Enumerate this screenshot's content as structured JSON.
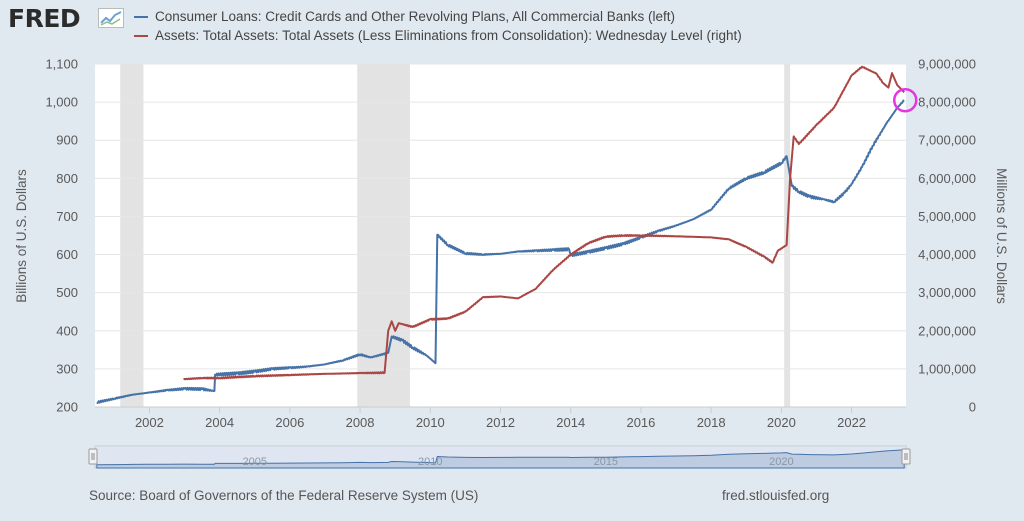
{
  "logo": {
    "text": "FRED"
  },
  "legend": [
    {
      "label": "Consumer Loans: Credit Cards and Other Revolving Plans, All Commercial Banks (left)",
      "color": "#4572a7"
    },
    {
      "label": "Assets: Total Assets: Total Assets (Less Eliminations from Consolidation): Wednesday Level (right)",
      "color": "#aa4643"
    }
  ],
  "footer": {
    "source": "Source: Board of Governors of the Federal Reserve System (US)",
    "site": "fred.stlouisfed.org"
  },
  "colors": {
    "plot_background": "#ffffff",
    "page_background": "#e1e9f0",
    "gridline": "#e6e6e6",
    "recession": "#e3e3e3",
    "highlight_circle": "#e633e6",
    "navigator_fill": "#c5d2e6",
    "navigator_line": "#4572a7"
  },
  "chart_data": {
    "type": "line",
    "x_range": [
      2000.45,
      2023.55
    ],
    "x_ticks": [
      2002,
      2004,
      2006,
      2008,
      2010,
      2012,
      2014,
      2016,
      2018,
      2020,
      2022
    ],
    "x_tick_labels": [
      "2002",
      "2004",
      "2006",
      "2008",
      "2010",
      "2012",
      "2014",
      "2016",
      "2018",
      "2020",
      "2022"
    ],
    "y_left": {
      "label": "Billions of U.S. Dollars",
      "range": [
        200,
        1100
      ],
      "ticks": [
        200,
        300,
        400,
        500,
        600,
        700,
        800,
        900,
        1000,
        1100
      ],
      "tick_labels": [
        "200",
        "300",
        "400",
        "500",
        "600",
        "700",
        "800",
        "900",
        "1,000",
        "1,100"
      ]
    },
    "y_right": {
      "label": "Millions of U.S. Dollars",
      "range": [
        0,
        9000000
      ],
      "ticks": [
        0,
        1000000,
        2000000,
        3000000,
        4000000,
        5000000,
        6000000,
        7000000,
        8000000,
        9000000
      ],
      "tick_labels": [
        "0",
        "1,000,000",
        "2,000,000",
        "3,000,000",
        "4,000,000",
        "5,000,000",
        "6,000,000",
        "7,000,000",
        "8,000,000",
        "9,000,000"
      ]
    },
    "recessions": [
      [
        2001.17,
        2001.83
      ],
      [
        2007.92,
        2009.42
      ],
      [
        2020.08,
        2020.25
      ]
    ],
    "series": [
      {
        "name": "Consumer Loans: Credit Cards and Other Revolving Plans, All Commercial Banks",
        "axis": "left",
        "color": "#4572a7",
        "points": [
          [
            2000.5,
            212
          ],
          [
            2001.0,
            222
          ],
          [
            2001.5,
            232
          ],
          [
            2002.0,
            238
          ],
          [
            2002.5,
            244
          ],
          [
            2003.0,
            248
          ],
          [
            2003.5,
            247
          ],
          [
            2003.85,
            242
          ],
          [
            2003.87,
            285
          ],
          [
            2004.5,
            288
          ],
          [
            2005.0,
            293
          ],
          [
            2005.5,
            300
          ],
          [
            2006.0,
            303
          ],
          [
            2006.5,
            306
          ],
          [
            2007.0,
            312
          ],
          [
            2007.5,
            322
          ],
          [
            2008.0,
            338
          ],
          [
            2008.3,
            330
          ],
          [
            2008.8,
            342
          ],
          [
            2008.9,
            385
          ],
          [
            2009.2,
            375
          ],
          [
            2009.5,
            356
          ],
          [
            2009.9,
            335
          ],
          [
            2010.15,
            315
          ],
          [
            2010.2,
            652
          ],
          [
            2010.5,
            625
          ],
          [
            2011.0,
            603
          ],
          [
            2011.5,
            600
          ],
          [
            2012.0,
            602
          ],
          [
            2012.5,
            608
          ],
          [
            2013.0,
            610
          ],
          [
            2013.5,
            612
          ],
          [
            2013.95,
            614
          ],
          [
            2014.0,
            598
          ],
          [
            2014.5,
            607
          ],
          [
            2015.0,
            617
          ],
          [
            2015.5,
            628
          ],
          [
            2016.0,
            645
          ],
          [
            2016.5,
            662
          ],
          [
            2017.0,
            676
          ],
          [
            2017.5,
            693
          ],
          [
            2018.0,
            718
          ],
          [
            2018.5,
            773
          ],
          [
            2019.0,
            800
          ],
          [
            2019.5,
            815
          ],
          [
            2020.0,
            840
          ],
          [
            2020.15,
            858
          ],
          [
            2020.3,
            780
          ],
          [
            2020.5,
            765
          ],
          [
            2020.8,
            752
          ],
          [
            2021.2,
            745
          ],
          [
            2021.5,
            738
          ],
          [
            2021.8,
            762
          ],
          [
            2022.0,
            785
          ],
          [
            2022.3,
            830
          ],
          [
            2022.6,
            885
          ],
          [
            2023.0,
            945
          ],
          [
            2023.3,
            985
          ],
          [
            2023.5,
            1005
          ]
        ]
      },
      {
        "name": "Assets: Total Assets: Total Assets (Less Eliminations from Consolidation): Wednesday Level",
        "axis": "right",
        "color": "#aa4643",
        "points": [
          [
            2002.97,
            730000
          ],
          [
            2003.5,
            760000
          ],
          [
            2004.0,
            760000
          ],
          [
            2005.0,
            810000
          ],
          [
            2006.0,
            840000
          ],
          [
            2007.0,
            870000
          ],
          [
            2008.0,
            890000
          ],
          [
            2008.7,
            900000
          ],
          [
            2008.8,
            2000000
          ],
          [
            2008.9,
            2250000
          ],
          [
            2009.0,
            2000000
          ],
          [
            2009.1,
            2200000
          ],
          [
            2009.5,
            2100000
          ],
          [
            2010.0,
            2300000
          ],
          [
            2010.5,
            2320000
          ],
          [
            2011.0,
            2500000
          ],
          [
            2011.5,
            2880000
          ],
          [
            2012.0,
            2900000
          ],
          [
            2012.5,
            2850000
          ],
          [
            2013.0,
            3100000
          ],
          [
            2013.5,
            3600000
          ],
          [
            2014.0,
            4000000
          ],
          [
            2014.5,
            4300000
          ],
          [
            2015.0,
            4470000
          ],
          [
            2015.5,
            4500000
          ],
          [
            2016.0,
            4500000
          ],
          [
            2017.0,
            4480000
          ],
          [
            2018.0,
            4450000
          ],
          [
            2018.5,
            4400000
          ],
          [
            2019.0,
            4200000
          ],
          [
            2019.5,
            3950000
          ],
          [
            2019.75,
            3790000
          ],
          [
            2019.9,
            4100000
          ],
          [
            2020.15,
            4250000
          ],
          [
            2020.25,
            6000000
          ],
          [
            2020.35,
            7100000
          ],
          [
            2020.5,
            6900000
          ],
          [
            2021.0,
            7400000
          ],
          [
            2021.5,
            7850000
          ],
          [
            2022.0,
            8700000
          ],
          [
            2022.3,
            8930000
          ],
          [
            2022.7,
            8750000
          ],
          [
            2022.9,
            8500000
          ],
          [
            2023.05,
            8380000
          ],
          [
            2023.15,
            8760000
          ],
          [
            2023.3,
            8450000
          ],
          [
            2023.5,
            8260000
          ]
        ]
      }
    ],
    "navigator": {
      "tick_labels": [
        "2005",
        "2010",
        "2015",
        "2020"
      ],
      "tick_values": [
        2005,
        2010,
        2015,
        2020
      ]
    }
  }
}
